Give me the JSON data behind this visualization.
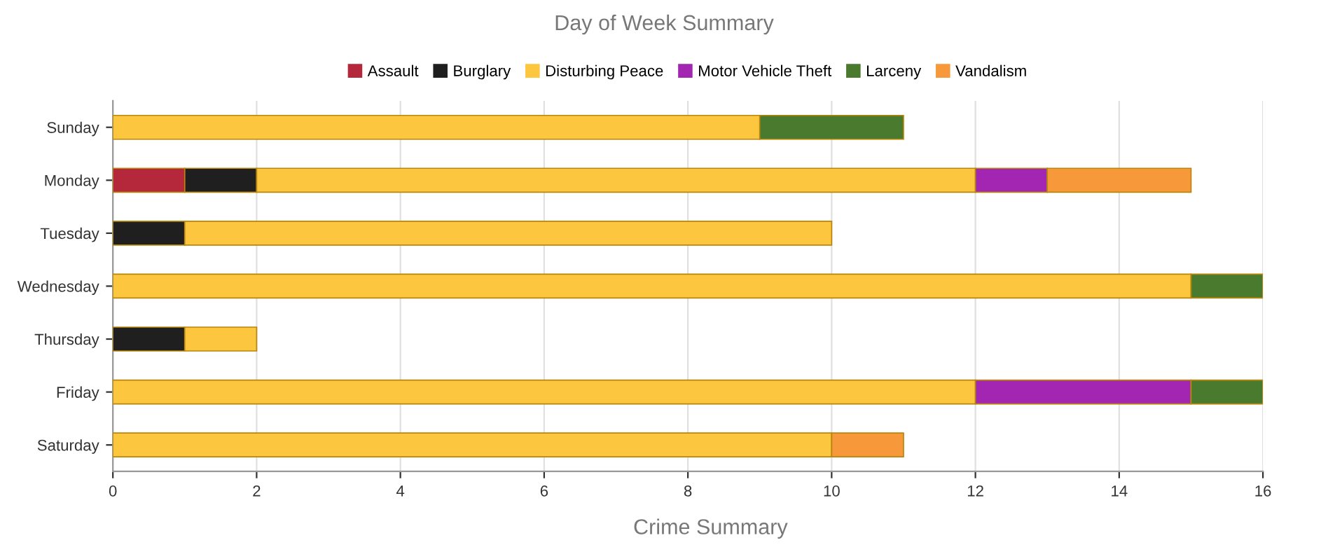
{
  "chart_data": {
    "type": "bar",
    "title": "Day of Week Summary",
    "xlabel": "Crime Summary",
    "orientation": "horizontal",
    "stacked": true,
    "grid": "x",
    "legend": "top",
    "categories": [
      "Sunday",
      "Monday",
      "Tuesday",
      "Wednesday",
      "Thursday",
      "Friday",
      "Saturday"
    ],
    "series": [
      {
        "name": "Assault",
        "color": "#b5283b",
        "values": [
          null,
          1,
          null,
          null,
          null,
          null,
          null
        ]
      },
      {
        "name": "Burglary",
        "color": "#1f1f1f",
        "values": [
          null,
          1,
          1,
          null,
          1,
          null,
          null
        ]
      },
      {
        "name": "Disturbing Peace",
        "color": "#fcc63e",
        "values": [
          9,
          10,
          9,
          15,
          1,
          12,
          10
        ]
      },
      {
        "name": "Motor Vehicle Theft",
        "color": "#a326b2",
        "values": [
          null,
          1,
          null,
          null,
          null,
          3,
          null
        ]
      },
      {
        "name": "Larceny",
        "color": "#4a7a2d",
        "values": [
          2,
          null,
          null,
          1,
          null,
          1,
          null
        ]
      },
      {
        "name": "Vandalism",
        "color": "#f7993b",
        "values": [
          null,
          2,
          null,
          null,
          null,
          null,
          1
        ]
      }
    ],
    "xlim": [
      0,
      16
    ],
    "xticks": [
      0,
      2,
      4,
      6,
      8,
      10,
      12,
      14,
      16
    ]
  }
}
